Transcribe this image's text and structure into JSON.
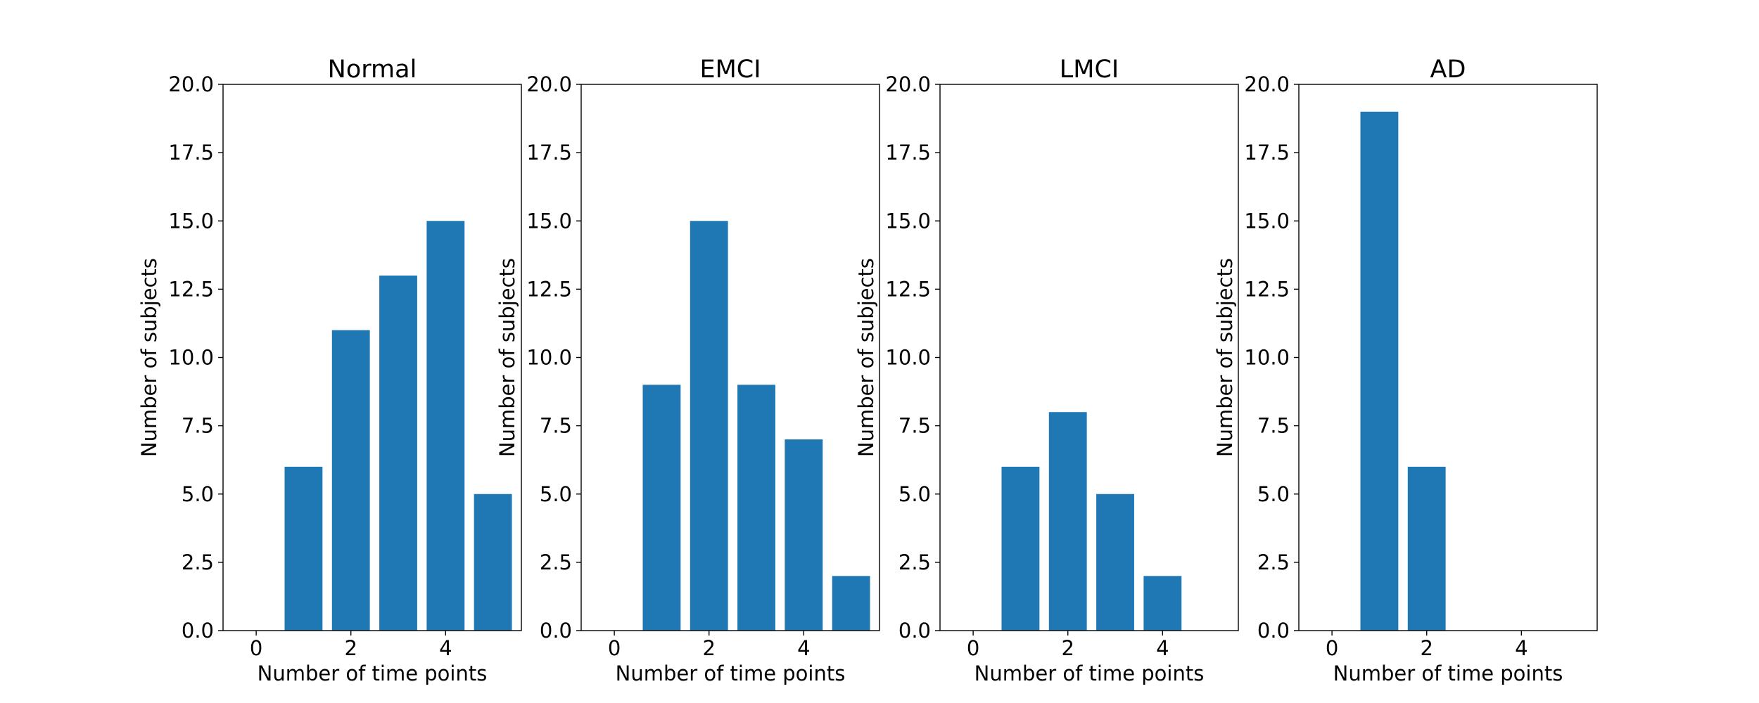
{
  "chart_data": [
    {
      "type": "bar",
      "title": "Normal",
      "xlabel": "Number of time points",
      "ylabel": "Number of subjects",
      "x": [
        1,
        2,
        3,
        4,
        5
      ],
      "values": [
        6,
        11,
        13,
        15,
        5
      ],
      "xlim": [
        -0.7,
        5.6
      ],
      "ylim": [
        0,
        20
      ],
      "xticks": [
        0,
        2,
        4
      ],
      "yticks": [
        "0.0",
        "2.5",
        "5.0",
        "7.5",
        "10.0",
        "12.5",
        "15.0",
        "17.5",
        "20.0"
      ],
      "bar_color": "#1f77b4",
      "grid": false
    },
    {
      "type": "bar",
      "title": "EMCI",
      "xlabel": "Number of time points",
      "ylabel": "Number of subjects",
      "x": [
        1,
        2,
        3,
        4,
        5
      ],
      "values": [
        9,
        15,
        9,
        7,
        2
      ],
      "xlim": [
        -0.7,
        5.6
      ],
      "ylim": [
        0,
        20
      ],
      "xticks": [
        0,
        2,
        4
      ],
      "yticks": [
        "0.0",
        "2.5",
        "5.0",
        "7.5",
        "10.0",
        "12.5",
        "15.0",
        "17.5",
        "20.0"
      ],
      "bar_color": "#1f77b4",
      "grid": false
    },
    {
      "type": "bar",
      "title": "LMCI",
      "xlabel": "Number of time points",
      "ylabel": "Number of subjects",
      "x": [
        1,
        2,
        3,
        4
      ],
      "values": [
        6,
        8,
        5,
        2
      ],
      "xlim": [
        -0.7,
        5.6
      ],
      "ylim": [
        0,
        20
      ],
      "xticks": [
        0,
        2,
        4
      ],
      "yticks": [
        "0.0",
        "2.5",
        "5.0",
        "7.5",
        "10.0",
        "12.5",
        "15.0",
        "17.5",
        "20.0"
      ],
      "bar_color": "#1f77b4",
      "grid": false
    },
    {
      "type": "bar",
      "title": "AD",
      "xlabel": "Number of time points",
      "ylabel": "Number of subjects",
      "x": [
        1,
        2
      ],
      "values": [
        19,
        6
      ],
      "xlim": [
        -0.7,
        5.6
      ],
      "ylim": [
        0,
        20
      ],
      "xticks": [
        0,
        2,
        4
      ],
      "yticks": [
        "0.0",
        "2.5",
        "5.0",
        "7.5",
        "10.0",
        "12.5",
        "15.0",
        "17.5",
        "20.0"
      ],
      "bar_color": "#1f77b4",
      "grid": false
    }
  ]
}
